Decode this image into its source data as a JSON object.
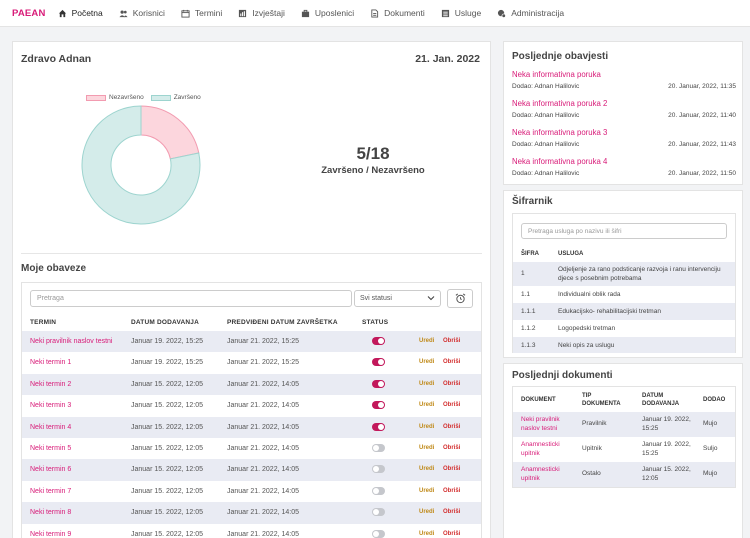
{
  "nav": {
    "brand": "PAEAN",
    "items": [
      {
        "label": "Početna",
        "icon": "home-icon",
        "active": true
      },
      {
        "label": "Korisnici",
        "icon": "users-icon"
      },
      {
        "label": "Termini",
        "icon": "calendar-icon"
      },
      {
        "label": "Izvještaji",
        "icon": "report-icon"
      },
      {
        "label": "Uposlenici",
        "icon": "briefcase-icon"
      },
      {
        "label": "Dokumenti",
        "icon": "document-icon"
      },
      {
        "label": "Usluge",
        "icon": "list-icon"
      },
      {
        "label": "Administracija",
        "icon": "admin-icon"
      }
    ]
  },
  "dashboard": {
    "greeting": "Zdravo Adnan",
    "date": "21. Jan. 2022",
    "legend": {
      "unfinished": "Nezavršeno",
      "finished": "Završeno"
    },
    "colors": {
      "unfinished": "#fcd6dd",
      "finished": "#d4ecea",
      "accent": "#d81b78"
    },
    "stat_value": "5/18",
    "stat_label": "Završeno / Nezavršeno"
  },
  "chart_data": {
    "type": "pie",
    "labels": [
      "Nezavršeno",
      "Završeno"
    ],
    "values": [
      5,
      18
    ]
  },
  "tasks": {
    "title": "Moje obaveze",
    "search_placeholder": "Pretraga",
    "status_filter": "Svi statusi",
    "columns": [
      "TERMIN",
      "DATUM DODAVANJA",
      "PREDVIĐENI DATUM ZAVRŠETKA",
      "STATUS"
    ],
    "edit_label": "Uredi",
    "delete_label": "Obriši",
    "rows": [
      {
        "name": "Neki pravilnik naslov testni",
        "added": "Januar 19. 2022, 15:25",
        "due": "Januar 21. 2022, 15:25",
        "status": true
      },
      {
        "name": "Neki termin 1",
        "added": "Januar 19. 2022, 15:25",
        "due": "Januar 21. 2022, 15:25",
        "status": true
      },
      {
        "name": "Neki termin 2",
        "added": "Januar 15. 2022, 12:05",
        "due": "Januar 21. 2022, 14:05",
        "status": true
      },
      {
        "name": "Neki termin 3",
        "added": "Januar 15. 2022, 12:05",
        "due": "Januar 21. 2022, 14:05",
        "status": true
      },
      {
        "name": "Neki termin 4",
        "added": "Januar 15. 2022, 12:05",
        "due": "Januar 21. 2022, 14:05",
        "status": true
      },
      {
        "name": "Neki termin 5",
        "added": "Januar 15. 2022, 12:05",
        "due": "Januar 21. 2022, 14:05",
        "status": false
      },
      {
        "name": "Neki termin 6",
        "added": "Januar 15. 2022, 12:05",
        "due": "Januar 21. 2022, 14:05",
        "status": false
      },
      {
        "name": "Neki termin 7",
        "added": "Januar 15. 2022, 12:05",
        "due": "Januar 21. 2022, 14:05",
        "status": false
      },
      {
        "name": "Neki termin 8",
        "added": "Januar 15. 2022, 12:05",
        "due": "Januar 21. 2022, 14:05",
        "status": false
      },
      {
        "name": "Neki termin 9",
        "added": "Januar 15. 2022, 12:05",
        "due": "Januar 21. 2022, 14:05",
        "status": false
      }
    ]
  },
  "notifications": {
    "title": "Posljednje obavjesti",
    "items": [
      {
        "title": "Neka informativna poruka",
        "author": "Dodao: Adnan Halilovic",
        "date": "20. Januar, 2022, 11:35"
      },
      {
        "title": "Neka informativna poruka 2",
        "author": "Dodao: Adnan Halilovic",
        "date": "20. Januar, 2022, 11:40"
      },
      {
        "title": "Neka informativna poruka 3",
        "author": "Dodao: Adnan Halilovic",
        "date": "20. Januar, 2022, 11:43"
      },
      {
        "title": "Neka informativna poruka 4",
        "author": "Dodao: Adnan Halilovic",
        "date": "20. Januar, 2022, 11:50"
      }
    ]
  },
  "sifrarnik": {
    "title": "Šifrarnik",
    "search_placeholder": "Pretraga usluga po nazivu ili šifri",
    "columns": [
      "ŠIFRA",
      "USLUGA"
    ],
    "rows": [
      {
        "code": "1",
        "service": "Odjeljenje za rano podsticanje razvoja i ranu intervenciju djece s posebnim potrebama"
      },
      {
        "code": "1.1",
        "service": "Individualni oblik rada"
      },
      {
        "code": "1.1.1",
        "service": "Edukacijsko- rehabilitacijski tretman"
      },
      {
        "code": "1.1.2",
        "service": "Logopedski tretman"
      },
      {
        "code": "1.1.3",
        "service": "Neki opis za uslugu"
      }
    ]
  },
  "documents": {
    "title": "Posljednji dokumenti",
    "columns": [
      "DOKUMENT",
      "TIP DOKUMENTA",
      "DATUM DODAVANJA",
      "DODAO"
    ],
    "rows": [
      {
        "name": "Neki pravilnik naslov testni",
        "type": "Pravilnik",
        "date": "Januar 19. 2022, 15:25",
        "by": "Mujo"
      },
      {
        "name": "Anamnesticki upitnik",
        "type": "Upitnik",
        "date": "Januar 19. 2022, 15:25",
        "by": "Suljo"
      },
      {
        "name": "Anamnesticki upitnik",
        "type": "Ostalo",
        "date": "Januar 15. 2022, 12:05",
        "by": "Mujo"
      }
    ]
  }
}
